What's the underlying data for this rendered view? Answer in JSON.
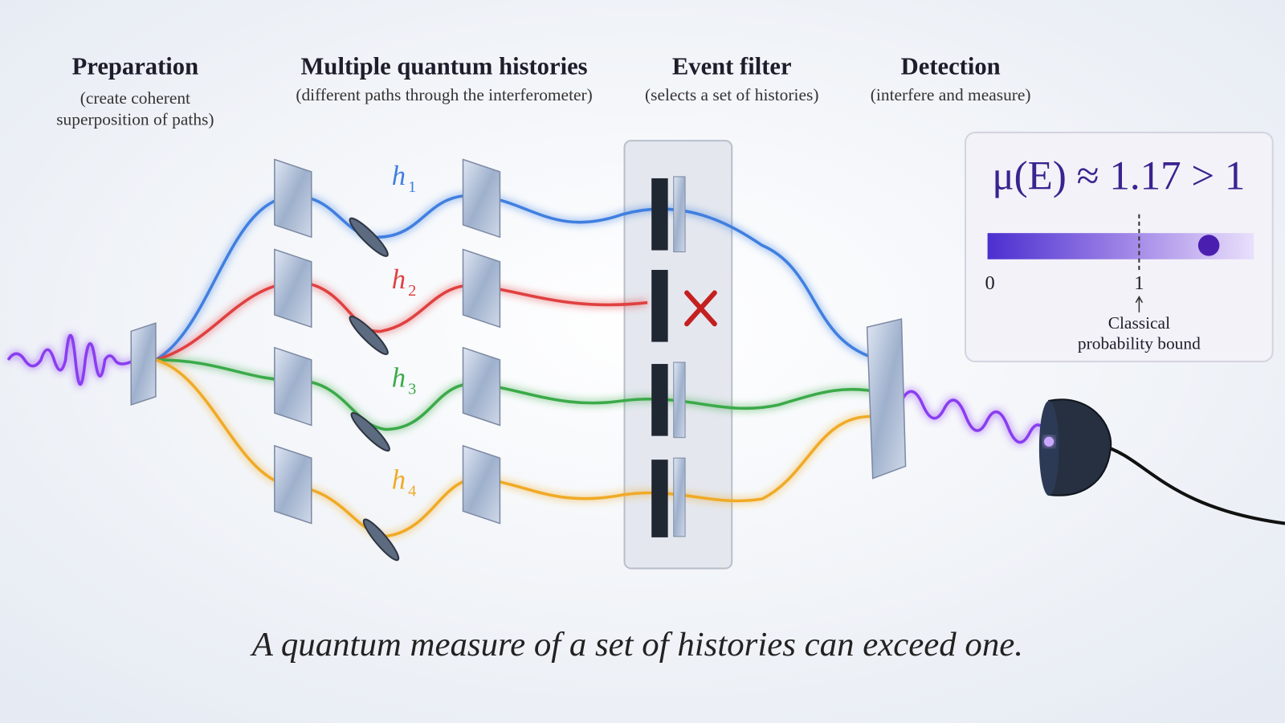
{
  "stages": [
    {
      "title": "Preparation",
      "subtitle": [
        "(create coherent",
        "superposition of paths)"
      ]
    },
    {
      "title": "Multiple quantum histories",
      "subtitle": [
        "(different paths through the interferometer)"
      ]
    },
    {
      "title": "Event filter",
      "subtitle": [
        "(selects a set of histories)"
      ]
    },
    {
      "title": "Detection",
      "subtitle": [
        "(interfere and measure)"
      ]
    }
  ],
  "histories": [
    {
      "symbol": "h",
      "index": "1"
    },
    {
      "symbol": "h",
      "index": "2"
    },
    {
      "symbol": "h",
      "index": "3"
    },
    {
      "symbol": "h",
      "index": "4"
    }
  ],
  "measure": {
    "formula": "μ(E) ≈ 1.17 > 1",
    "scale_labels": [
      "0",
      "1"
    ],
    "note": [
      "Classical",
      "probability bound"
    ]
  },
  "caption": "A quantum measure of a set of histories can exceed one."
}
